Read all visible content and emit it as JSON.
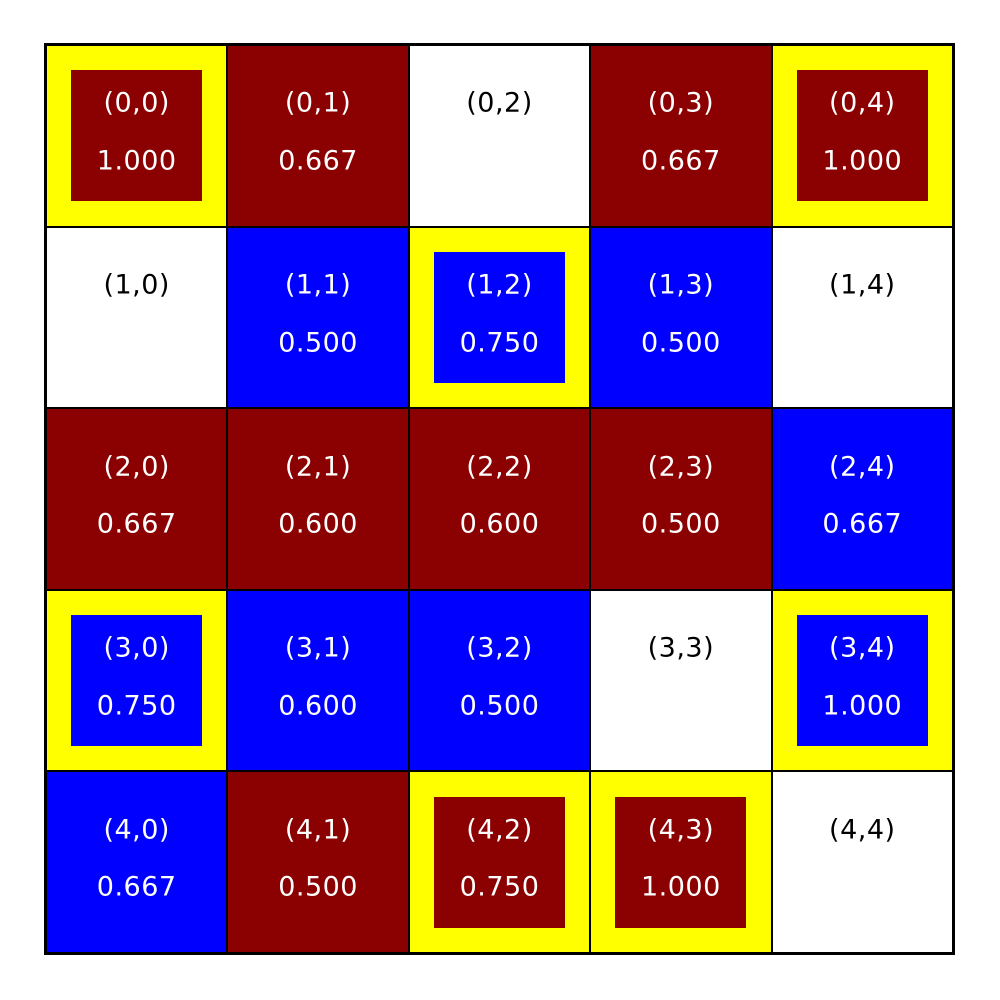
{
  "figure": {
    "background": "#FFFFFF",
    "grid_rows": 5,
    "grid_cols": 5,
    "grid_line_color": "#000000"
  },
  "colors": {
    "dark_red": "#8B0000",
    "blue": "#0000FF",
    "white": "#FFFFFF",
    "highlight": "#FFFF00",
    "text_on_fill": "#FFFFFF",
    "text_on_white": "#000000"
  },
  "cells": [
    {
      "row": 0,
      "col": 0,
      "label": "(0,0)",
      "value": "1.000",
      "fill": "dark_red",
      "highlighted": true
    },
    {
      "row": 0,
      "col": 1,
      "label": "(0,1)",
      "value": "0.667",
      "fill": "dark_red",
      "highlighted": false
    },
    {
      "row": 0,
      "col": 2,
      "label": "(0,2)",
      "value": null,
      "fill": "white",
      "highlighted": false
    },
    {
      "row": 0,
      "col": 3,
      "label": "(0,3)",
      "value": "0.667",
      "fill": "dark_red",
      "highlighted": false
    },
    {
      "row": 0,
      "col": 4,
      "label": "(0,4)",
      "value": "1.000",
      "fill": "dark_red",
      "highlighted": true
    },
    {
      "row": 1,
      "col": 0,
      "label": "(1,0)",
      "value": null,
      "fill": "white",
      "highlighted": false
    },
    {
      "row": 1,
      "col": 1,
      "label": "(1,1)",
      "value": "0.500",
      "fill": "blue",
      "highlighted": false
    },
    {
      "row": 1,
      "col": 2,
      "label": "(1,2)",
      "value": "0.750",
      "fill": "blue",
      "highlighted": true
    },
    {
      "row": 1,
      "col": 3,
      "label": "(1,3)",
      "value": "0.500",
      "fill": "blue",
      "highlighted": false
    },
    {
      "row": 1,
      "col": 4,
      "label": "(1,4)",
      "value": null,
      "fill": "white",
      "highlighted": false
    },
    {
      "row": 2,
      "col": 0,
      "label": "(2,0)",
      "value": "0.667",
      "fill": "dark_red",
      "highlighted": false
    },
    {
      "row": 2,
      "col": 1,
      "label": "(2,1)",
      "value": "0.600",
      "fill": "dark_red",
      "highlighted": false
    },
    {
      "row": 2,
      "col": 2,
      "label": "(2,2)",
      "value": "0.600",
      "fill": "dark_red",
      "highlighted": false
    },
    {
      "row": 2,
      "col": 3,
      "label": "(2,3)",
      "value": "0.500",
      "fill": "dark_red",
      "highlighted": false
    },
    {
      "row": 2,
      "col": 4,
      "label": "(2,4)",
      "value": "0.667",
      "fill": "blue",
      "highlighted": false
    },
    {
      "row": 3,
      "col": 0,
      "label": "(3,0)",
      "value": "0.750",
      "fill": "blue",
      "highlighted": true
    },
    {
      "row": 3,
      "col": 1,
      "label": "(3,1)",
      "value": "0.600",
      "fill": "blue",
      "highlighted": false
    },
    {
      "row": 3,
      "col": 2,
      "label": "(3,2)",
      "value": "0.500",
      "fill": "blue",
      "highlighted": false
    },
    {
      "row": 3,
      "col": 3,
      "label": "(3,3)",
      "value": null,
      "fill": "white",
      "highlighted": false
    },
    {
      "row": 3,
      "col": 4,
      "label": "(3,4)",
      "value": "1.000",
      "fill": "blue",
      "highlighted": true
    },
    {
      "row": 4,
      "col": 0,
      "label": "(4,0)",
      "value": "0.667",
      "fill": "blue",
      "highlighted": false
    },
    {
      "row": 4,
      "col": 1,
      "label": "(4,1)",
      "value": "0.500",
      "fill": "dark_red",
      "highlighted": false
    },
    {
      "row": 4,
      "col": 2,
      "label": "(4,2)",
      "value": "0.750",
      "fill": "dark_red",
      "highlighted": true
    },
    {
      "row": 4,
      "col": 3,
      "label": "(4,3)",
      "value": "1.000",
      "fill": "dark_red",
      "highlighted": true
    },
    {
      "row": 4,
      "col": 4,
      "label": "(4,4)",
      "value": null,
      "fill": "white",
      "highlighted": false
    }
  ],
  "chart_data": {
    "type": "heatmap",
    "title": "",
    "rows": 5,
    "cols": 5,
    "cell_labels": [
      [
        "(0,0)",
        "(0,1)",
        "(0,2)",
        "(0,3)",
        "(0,4)"
      ],
      [
        "(1,0)",
        "(1,1)",
        "(1,2)",
        "(1,3)",
        "(1,4)"
      ],
      [
        "(2,0)",
        "(2,1)",
        "(2,2)",
        "(2,3)",
        "(2,4)"
      ],
      [
        "(3,0)",
        "(3,1)",
        "(3,2)",
        "(3,3)",
        "(3,4)"
      ],
      [
        "(4,0)",
        "(4,1)",
        "(4,2)",
        "(4,3)",
        "(4,4)"
      ]
    ],
    "values": [
      [
        1.0,
        0.667,
        null,
        0.667,
        1.0
      ],
      [
        null,
        0.5,
        0.75,
        0.5,
        null
      ],
      [
        0.667,
        0.6,
        0.6,
        0.5,
        0.667
      ],
      [
        0.75,
        0.6,
        0.5,
        null,
        1.0
      ],
      [
        0.667,
        0.5,
        0.75,
        1.0,
        null
      ]
    ],
    "cell_colors": [
      [
        "dark_red",
        "dark_red",
        "white",
        "dark_red",
        "dark_red"
      ],
      [
        "white",
        "blue",
        "blue",
        "blue",
        "white"
      ],
      [
        "dark_red",
        "dark_red",
        "dark_red",
        "dark_red",
        "blue"
      ],
      [
        "blue",
        "blue",
        "blue",
        "white",
        "blue"
      ],
      [
        "blue",
        "dark_red",
        "dark_red",
        "dark_red",
        "white"
      ]
    ],
    "highlighted_cells": [
      [
        0,
        0
      ],
      [
        0,
        4
      ],
      [
        1,
        2
      ],
      [
        3,
        0
      ],
      [
        3,
        4
      ],
      [
        4,
        2
      ],
      [
        4,
        3
      ]
    ],
    "color_legend": {
      "dark_red": "#8B0000",
      "blue": "#0000FF",
      "white": "#FFFFFF",
      "highlight_border": "#FFFF00"
    },
    "grid_on": true,
    "legend_position": "none"
  }
}
